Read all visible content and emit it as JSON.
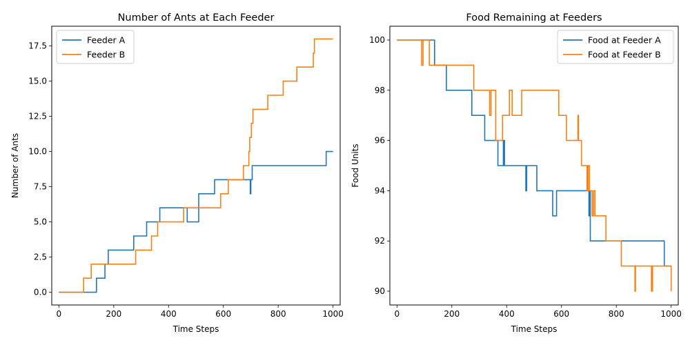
{
  "chart_data": [
    {
      "type": "line",
      "title": "Number of Ants at Each Feeder",
      "xlabel": "Time Steps",
      "ylabel": "Number of Ants",
      "xlim": [
        -26,
        1026
      ],
      "ylim": [
        -0.9,
        18.9
      ],
      "xticks": [
        0,
        200,
        400,
        600,
        800,
        1000
      ],
      "xtick_labels": [
        "0",
        "200",
        "400",
        "600",
        "800",
        "1000"
      ],
      "yticks": [
        0,
        2.5,
        5,
        7.5,
        10,
        12.5,
        15,
        17.5
      ],
      "ytick_labels": [
        "0.0",
        "2.5",
        "5.0",
        "7.5",
        "10.0",
        "12.5",
        "15.0",
        "17.5"
      ],
      "legend_position": "top-left",
      "step": true,
      "series": [
        {
          "name": "Feeder A",
          "color": "#1f77b4",
          "x": [
            0,
            137,
            168,
            180,
            273,
            320,
            368,
            468,
            510,
            568,
            698,
            700,
            705,
            975,
            1000
          ],
          "y": [
            0,
            1,
            2,
            3,
            4,
            5,
            6,
            5,
            7,
            8,
            7,
            8,
            9,
            10,
            10
          ]
        },
        {
          "name": "Feeder B",
          "color": "#ff7f0e",
          "x": [
            0,
            90,
            118,
            280,
            338,
            360,
            455,
            590,
            618,
            673,
            693,
            696,
            702,
            708,
            712,
            762,
            818,
            868,
            928,
            932,
            1000
          ],
          "y": [
            0,
            1,
            2,
            3,
            4,
            5,
            6,
            7,
            8,
            9,
            10,
            11,
            12,
            13,
            13,
            14,
            15,
            16,
            17,
            18,
            18
          ]
        }
      ]
    },
    {
      "type": "line",
      "title": "Food Remaining at Feeders",
      "xlabel": "Time Steps",
      "ylabel": "Food Units",
      "xlim": [
        -26,
        1026
      ],
      "ylim": [
        89.45,
        100.55
      ],
      "xticks": [
        0,
        200,
        400,
        600,
        800,
        1000
      ],
      "xtick_labels": [
        "0",
        "200",
        "400",
        "600",
        "800",
        "1000"
      ],
      "yticks": [
        90,
        92,
        94,
        96,
        98,
        100
      ],
      "ytick_labels": [
        "90",
        "92",
        "94",
        "96",
        "98",
        "100"
      ],
      "legend_position": "top-right",
      "step": true,
      "series": [
        {
          "name": "Food at Feeder A",
          "color": "#1f77b4",
          "x": [
            0,
            137,
            168,
            180,
            273,
            320,
            325,
            368,
            388,
            392,
            470,
            473,
            510,
            568,
            582,
            700,
            703,
            705,
            975,
            1000
          ],
          "y": [
            100,
            99,
            99,
            98,
            97,
            96,
            96,
            95,
            96,
            95,
            94,
            95,
            94,
            93,
            94,
            93,
            94,
            92,
            91,
            91
          ],
          "first_segment_end": 168,
          "notes_skip": true
        },
        {
          "name": "Food at Feeder B",
          "color": "#ff7f0e",
          "x": [
            0,
            90,
            95,
            118,
            280,
            338,
            343,
            360,
            385,
            410,
            420,
            455,
            590,
            618,
            660,
            662,
            673,
            693,
            697,
            702,
            712,
            717,
            722,
            762,
            818,
            868,
            870,
            928,
            932,
            1000
          ],
          "y": [
            100,
            99,
            100,
            99,
            98,
            97,
            98,
            96,
            97,
            98,
            97,
            98,
            97,
            96,
            97,
            96,
            95,
            94,
            95,
            94,
            93,
            94,
            93,
            92,
            91,
            90,
            91,
            90,
            91,
            90
          ]
        }
      ]
    }
  ]
}
